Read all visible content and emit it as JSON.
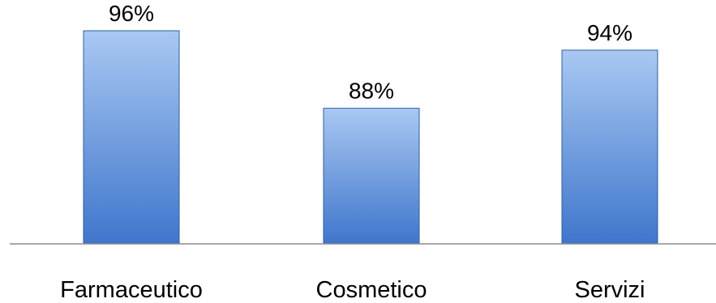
{
  "chart_data": {
    "type": "bar",
    "categories": [
      "Farmaceutico",
      "Cosmetico",
      "Servizi"
    ],
    "values": [
      96,
      88,
      94
    ],
    "value_labels": [
      "96%",
      "88%",
      "94%"
    ],
    "title": "",
    "xlabel": "",
    "ylabel": "",
    "ylim": [
      74,
      97
    ],
    "grid": false,
    "legend": "none",
    "colors": {
      "bar_light": "#a9c8f2",
      "bar_dark": "#3f76cc",
      "bar_edge": "#2f5f9e",
      "axis": "#8c8c8c"
    }
  }
}
